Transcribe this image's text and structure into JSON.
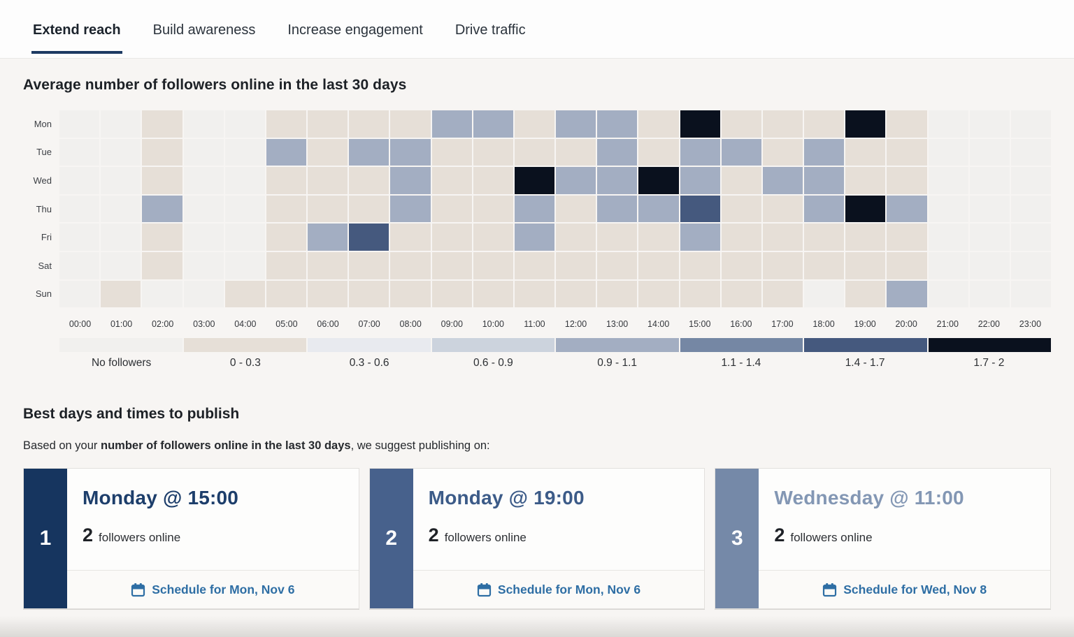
{
  "tabs": [
    {
      "label": "Extend reach",
      "active": true
    },
    {
      "label": "Build awareness",
      "active": false
    },
    {
      "label": "Increase engagement",
      "active": false
    },
    {
      "label": "Drive traffic",
      "active": false
    }
  ],
  "colors": {
    "active_tab_underline": "#1d3a63",
    "link_blue": "#2e6ea4"
  },
  "heatmap": {
    "title": "Average number of followers online in the last 30 days",
    "days": [
      "Mon",
      "Tue",
      "Wed",
      "Thu",
      "Fri",
      "Sat",
      "Sun"
    ],
    "hours": [
      "00:00",
      "01:00",
      "02:00",
      "03:00",
      "04:00",
      "05:00",
      "06:00",
      "07:00",
      "08:00",
      "09:00",
      "10:00",
      "11:00",
      "12:00",
      "13:00",
      "14:00",
      "15:00",
      "16:00",
      "17:00",
      "18:00",
      "19:00",
      "20:00",
      "21:00",
      "22:00",
      "23:00"
    ],
    "legend": [
      {
        "label": "No followers",
        "color": "#f1f0ee"
      },
      {
        "label": "0 - 0.3",
        "color": "#e6dfd7"
      },
      {
        "label": "0.3 - 0.6",
        "color": "#e8eaef"
      },
      {
        "label": "0.6 - 0.9",
        "color": "#ccd3dd"
      },
      {
        "label": "0.9 - 1.1",
        "color": "#a3aec2"
      },
      {
        "label": "1.1 - 1.4",
        "color": "#7587a4"
      },
      {
        "label": "1.4 - 1.7",
        "color": "#45597e"
      },
      {
        "label": "1.7 - 2",
        "color": "#0a111e"
      }
    ]
  },
  "chart_data": {
    "type": "heatmap",
    "title": "Average number of followers online in the last 30 days",
    "rows": [
      "Mon",
      "Tue",
      "Wed",
      "Thu",
      "Fri",
      "Sat",
      "Sun"
    ],
    "columns": [
      "00:00",
      "01:00",
      "02:00",
      "03:00",
      "04:00",
      "05:00",
      "06:00",
      "07:00",
      "08:00",
      "09:00",
      "10:00",
      "11:00",
      "12:00",
      "13:00",
      "14:00",
      "15:00",
      "16:00",
      "17:00",
      "18:00",
      "19:00",
      "20:00",
      "21:00",
      "22:00",
      "23:00"
    ],
    "bucket_labels": [
      "No followers",
      "0 - 0.3",
      "0.3 - 0.6",
      "0.6 - 0.9",
      "0.9 - 1.1",
      "1.1 - 1.4",
      "1.4 - 1.7",
      "1.7 - 2"
    ],
    "cell_buckets": [
      [
        0,
        0,
        1,
        0,
        0,
        1,
        1,
        1,
        1,
        4,
        4,
        1,
        4,
        4,
        1,
        7,
        1,
        1,
        1,
        7,
        1,
        0,
        0,
        0
      ],
      [
        0,
        0,
        1,
        0,
        0,
        4,
        1,
        4,
        4,
        1,
        1,
        1,
        1,
        4,
        1,
        4,
        4,
        1,
        4,
        1,
        1,
        0,
        0,
        0
      ],
      [
        0,
        0,
        1,
        0,
        0,
        1,
        1,
        1,
        4,
        1,
        1,
        7,
        4,
        4,
        7,
        4,
        1,
        4,
        4,
        1,
        1,
        0,
        0,
        0
      ],
      [
        0,
        0,
        4,
        0,
        0,
        1,
        1,
        1,
        4,
        1,
        1,
        4,
        1,
        4,
        4,
        6,
        1,
        1,
        4,
        7,
        4,
        0,
        0,
        0
      ],
      [
        0,
        0,
        1,
        0,
        0,
        1,
        4,
        6,
        1,
        1,
        1,
        4,
        1,
        1,
        1,
        4,
        1,
        1,
        1,
        1,
        1,
        0,
        0,
        0
      ],
      [
        0,
        0,
        1,
        0,
        0,
        1,
        1,
        1,
        1,
        1,
        1,
        1,
        1,
        1,
        1,
        1,
        1,
        1,
        1,
        1,
        1,
        0,
        0,
        0
      ],
      [
        0,
        1,
        0,
        0,
        1,
        1,
        1,
        1,
        1,
        1,
        1,
        1,
        1,
        1,
        1,
        1,
        1,
        1,
        0,
        1,
        4,
        0,
        0,
        0
      ]
    ]
  },
  "suggestions": {
    "heading": "Best days and times to publish",
    "intro_prefix": "Based on your ",
    "intro_bold": "number of followers online in the last 30 days",
    "intro_suffix": ", we suggest publishing on:",
    "cards": [
      {
        "rank": "1",
        "title": "Monday @ 15:00",
        "count": "2",
        "count_label": "followers online",
        "action": "Schedule for Mon, Nov 6",
        "stripe_color": "#16355f",
        "title_color": "#1d3e6b"
      },
      {
        "rank": "2",
        "title": "Monday @ 19:00",
        "count": "2",
        "count_label": "followers online",
        "action": "Schedule for Mon, Nov 6",
        "stripe_color": "#47618c",
        "title_color": "#3c5b88"
      },
      {
        "rank": "3",
        "title": "Wednesday @ 11:00",
        "count": "2",
        "count_label": "followers online",
        "action": "Schedule for Wed, Nov 8",
        "stripe_color": "#7589a8",
        "title_color": "#8397b4"
      }
    ]
  }
}
